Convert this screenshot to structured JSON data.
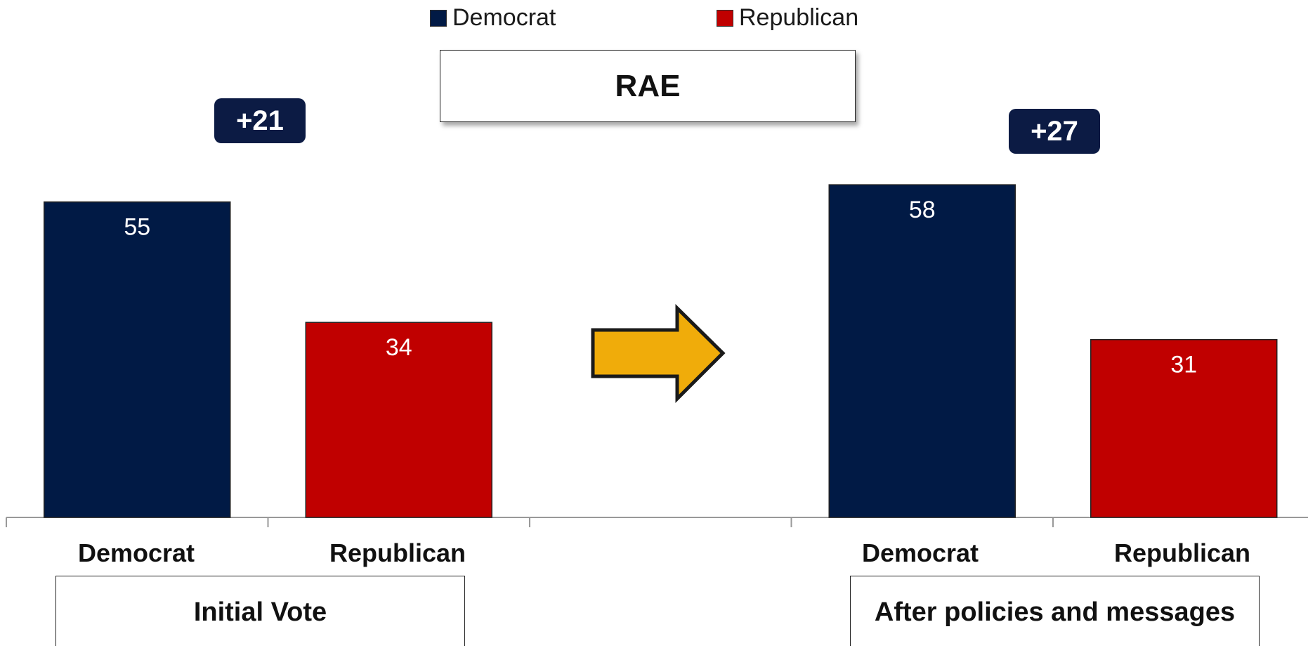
{
  "title": "RAE",
  "colors": {
    "democrat": "#011a45",
    "republican": "#c00000",
    "arrow": "#f0ac0a",
    "badge": "#0c1b44"
  },
  "legend": [
    {
      "label": "Democrat",
      "color": "#011a45"
    },
    {
      "label": "Republican",
      "color": "#c00000"
    }
  ],
  "margins": {
    "initial": "+21",
    "after": "+27"
  },
  "groups": {
    "initial": "Initial Vote",
    "after": "After policies and messages"
  },
  "chart_data": {
    "type": "bar",
    "title": "RAE",
    "categories": [
      "Democrat",
      "Republican",
      "",
      "Democrat",
      "Republican"
    ],
    "series": [
      {
        "name": "Democrat",
        "values": [
          55,
          null,
          null,
          58,
          null
        ]
      },
      {
        "name": "Republican",
        "values": [
          null,
          34,
          null,
          null,
          31
        ]
      }
    ],
    "groups": [
      "Initial Vote",
      "After policies and messages"
    ],
    "annotations": [
      "+21",
      "+27"
    ],
    "ylim": [
      0,
      65
    ],
    "grid": false,
    "legend_position": "top"
  }
}
